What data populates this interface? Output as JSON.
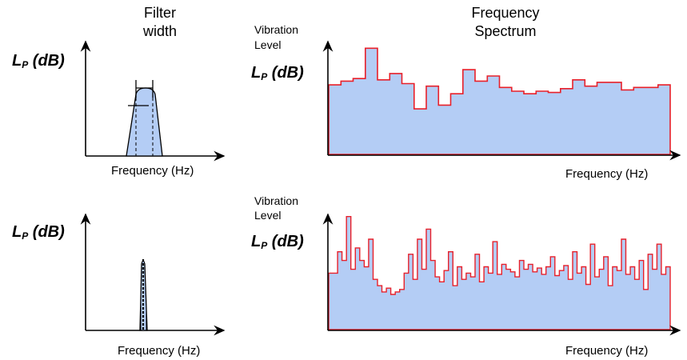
{
  "labels": {
    "filter_width": [
      "Filter",
      "width"
    ],
    "frequency_spectrum": [
      "Frequency",
      "Spectrum"
    ],
    "vibration_level": [
      "Vibration",
      "Level"
    ],
    "lp_main": "L",
    "lp_sub": "P",
    "lp_unit": " (dB)",
    "frequency_hz": "Frequency  (Hz)"
  },
  "colors": {
    "fill": "#b4cdf5",
    "outline_red": "#e8202a",
    "axis": "#000000"
  },
  "spectrum_wide": {
    "description_bins": "octave-band style levels, relative 0-1",
    "levels": [
      0.55,
      0.58,
      0.6,
      0.84,
      0.59,
      0.64,
      0.56,
      0.36,
      0.54,
      0.39,
      0.48,
      0.67,
      0.58,
      0.62,
      0.53,
      0.5,
      0.48,
      0.5,
      0.49,
      0.52,
      0.59,
      0.54,
      0.57,
      0.57,
      0.51,
      0.53,
      0.53,
      0.55
    ]
  },
  "spectrum_narrow": {
    "levels": [
      0.45,
      0.45,
      0.62,
      0.55,
      0.9,
      0.48,
      0.65,
      0.55,
      0.5,
      0.72,
      0.4,
      0.35,
      0.3,
      0.33,
      0.28,
      0.3,
      0.32,
      0.45,
      0.6,
      0.4,
      0.72,
      0.48,
      0.8,
      0.55,
      0.42,
      0.38,
      0.47,
      0.62,
      0.35,
      0.5,
      0.4,
      0.45,
      0.42,
      0.6,
      0.38,
      0.5,
      0.45,
      0.7,
      0.44,
      0.52,
      0.48,
      0.46,
      0.42,
      0.55,
      0.48,
      0.52,
      0.46,
      0.49,
      0.44,
      0.5,
      0.58,
      0.43,
      0.47,
      0.51,
      0.4,
      0.62,
      0.45,
      0.5,
      0.36,
      0.68,
      0.42,
      0.48,
      0.58,
      0.35,
      0.5,
      0.47,
      0.72,
      0.44,
      0.5,
      0.4,
      0.55,
      0.32,
      0.6,
      0.48,
      0.68,
      0.44,
      0.5
    ]
  }
}
